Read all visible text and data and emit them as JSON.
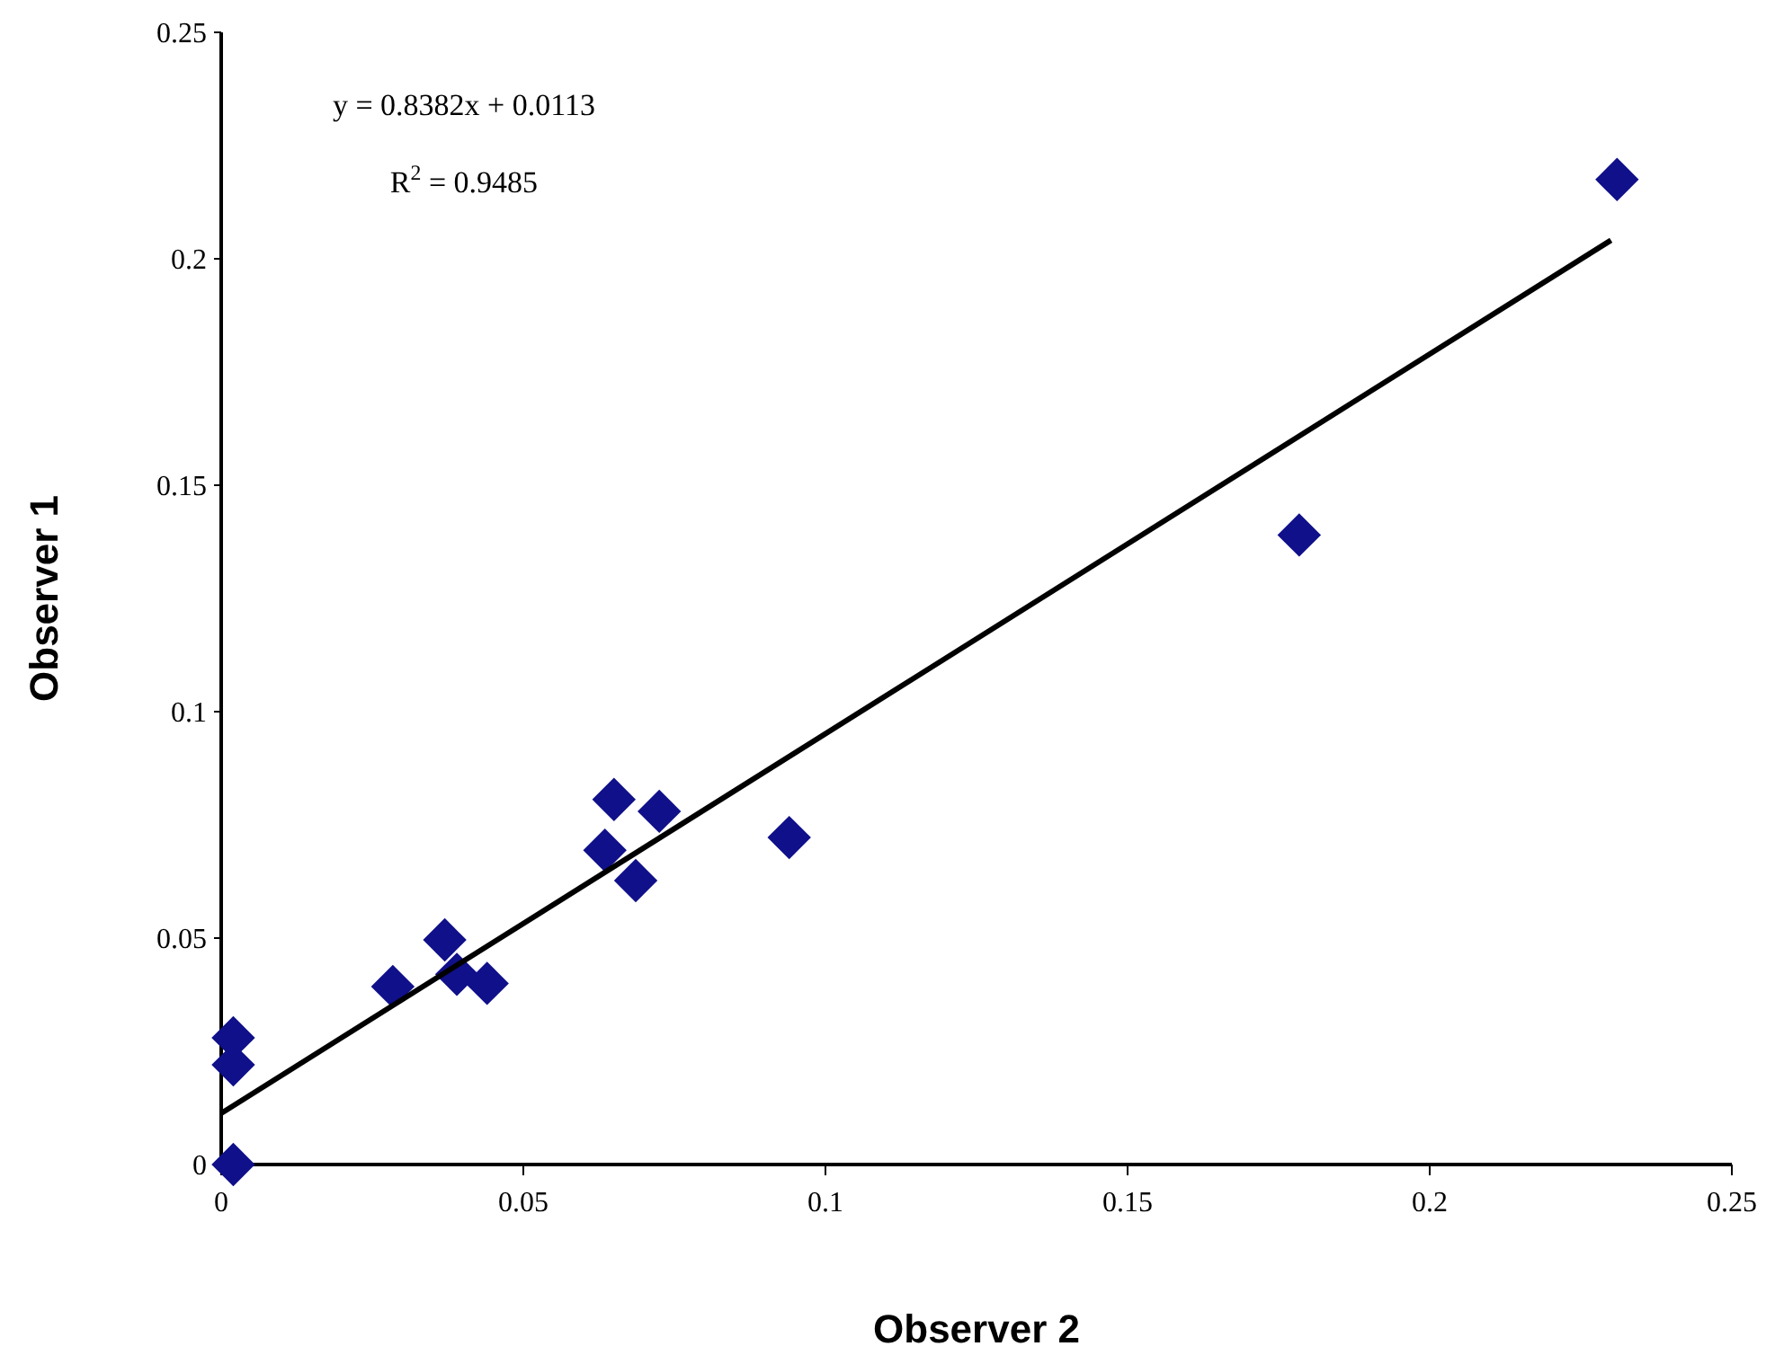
{
  "chart_data": {
    "type": "scatter",
    "xlabel": "Observer 2",
    "ylabel": "Observer 1",
    "grid": false,
    "xlim": [
      0,
      0.25
    ],
    "ylim": [
      0,
      0.25
    ],
    "xticks": [
      0,
      0.05,
      0.1,
      0.15,
      0.2,
      0.25
    ],
    "yticks": [
      0,
      0.05,
      0.1,
      0.15,
      0.2,
      0.25
    ],
    "annotations": [
      "y = 0.8382x + 0.0113",
      "R$^{2}$ = 0.9485"
    ],
    "series": [
      {
        "marker": "diamond",
        "color": "#10108a",
        "x": [
          0.002,
          0.002,
          0.002,
          0.0284,
          0.037,
          0.039,
          0.044,
          0.065,
          0.0725,
          0.0635,
          0.0686,
          0.094,
          0.1784,
          0.231
        ],
        "values": [
          0,
          0.028,
          0.022,
          0.0393,
          0.0496,
          0.042,
          0.04,
          0.0806,
          0.078,
          0.0694,
          0.0627,
          0.0722,
          0.139,
          0.2175
        ]
      },
      {
        "type": "line",
        "marker": "none",
        "color": "#000000",
        "x": [
          0,
          0.23
        ],
        "values": [
          0.0113,
          0.2041
        ]
      }
    ]
  }
}
